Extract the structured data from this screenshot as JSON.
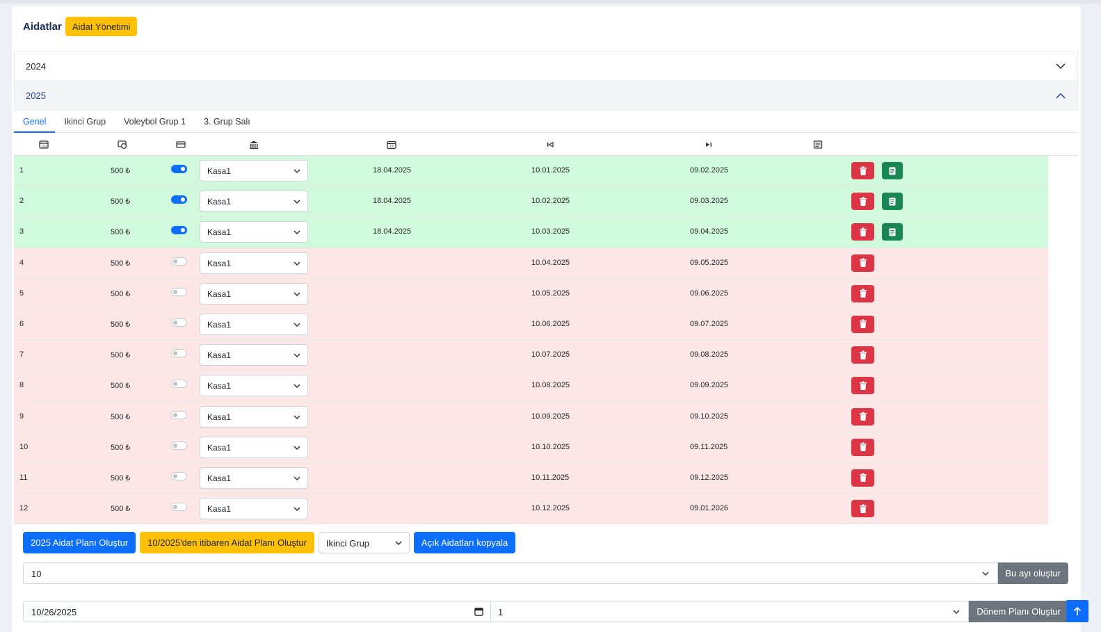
{
  "header": {
    "title": "Aidatlar",
    "badge": "Aidat Yönetimi"
  },
  "accordion": [
    {
      "year": "2024",
      "expanded": false
    },
    {
      "year": "2025",
      "expanded": true
    }
  ],
  "tabs": [
    "Genel",
    "Ikinci Grup",
    "Voleybol Grup 1",
    "3. Grup Salı"
  ],
  "active_tab": "Genel",
  "columns": [
    "number-icon",
    "amount-icon",
    "card-icon",
    "bank-icon",
    "calendar-icon",
    "start-icon",
    "end-icon",
    "receipt-icon"
  ],
  "rows": [
    {
      "no": "1",
      "amount": "500 ₺",
      "paid": true,
      "account": "Kasa1",
      "paid_date": "18.04.2025",
      "start": "10.01.2025",
      "end": "09.02.2025"
    },
    {
      "no": "2",
      "amount": "500 ₺",
      "paid": true,
      "account": "Kasa1",
      "paid_date": "18.04.2025",
      "start": "10.02.2025",
      "end": "09.03.2025"
    },
    {
      "no": "3",
      "amount": "500 ₺",
      "paid": true,
      "account": "Kasa1",
      "paid_date": "18.04.2025",
      "start": "10.03.2025",
      "end": "09.04.2025"
    },
    {
      "no": "4",
      "amount": "500 ₺",
      "paid": false,
      "account": "Kasa1",
      "paid_date": "",
      "start": "10.04.2025",
      "end": "09.05.2025"
    },
    {
      "no": "5",
      "amount": "500 ₺",
      "paid": false,
      "account": "Kasa1",
      "paid_date": "",
      "start": "10.05.2025",
      "end": "09.06.2025"
    },
    {
      "no": "6",
      "amount": "500 ₺",
      "paid": false,
      "account": "Kasa1",
      "paid_date": "",
      "start": "10.06.2025",
      "end": "09.07.2025"
    },
    {
      "no": "7",
      "amount": "500 ₺",
      "paid": false,
      "account": "Kasa1",
      "paid_date": "",
      "start": "10.07.2025",
      "end": "09.08.2025"
    },
    {
      "no": "8",
      "amount": "500 ₺",
      "paid": false,
      "account": "Kasa1",
      "paid_date": "",
      "start": "10.08.2025",
      "end": "09.09.2025"
    },
    {
      "no": "9",
      "amount": "500 ₺",
      "paid": false,
      "account": "Kasa1",
      "paid_date": "",
      "start": "10.09.2025",
      "end": "09.10.2025"
    },
    {
      "no": "10",
      "amount": "500 ₺",
      "paid": false,
      "account": "Kasa1",
      "paid_date": "",
      "start": "10.10.2025",
      "end": "09.11.2025"
    },
    {
      "no": "11",
      "amount": "500 ₺",
      "paid": false,
      "account": "Kasa1",
      "paid_date": "",
      "start": "10.11.2025",
      "end": "09.12.2025"
    },
    {
      "no": "12",
      "amount": "500 ₺",
      "paid": false,
      "account": "Kasa1",
      "paid_date": "",
      "start": "10.12.2025",
      "end": "09.01.2026"
    }
  ],
  "actions": {
    "create_plan": "2025 Aidat Planı Oluştur",
    "create_from": "10/2025'den itibaren Aidat Planı Oluştur",
    "group_select": "Ikinci Grup",
    "copy_open": "Açık Aidatları kopyala"
  },
  "month_form": {
    "value": "10",
    "button": "Bu ayı oluştur"
  },
  "period_form": {
    "date": "10/26/2025",
    "count": "1",
    "button": "Dönem Planı Oluştur"
  },
  "colors": {
    "paid_row": "#d1fadc",
    "unpaid_row": "#fde6e6",
    "primary": "#0d6efd",
    "warning": "#ffc107",
    "danger": "#dc3545",
    "success": "#198754"
  }
}
